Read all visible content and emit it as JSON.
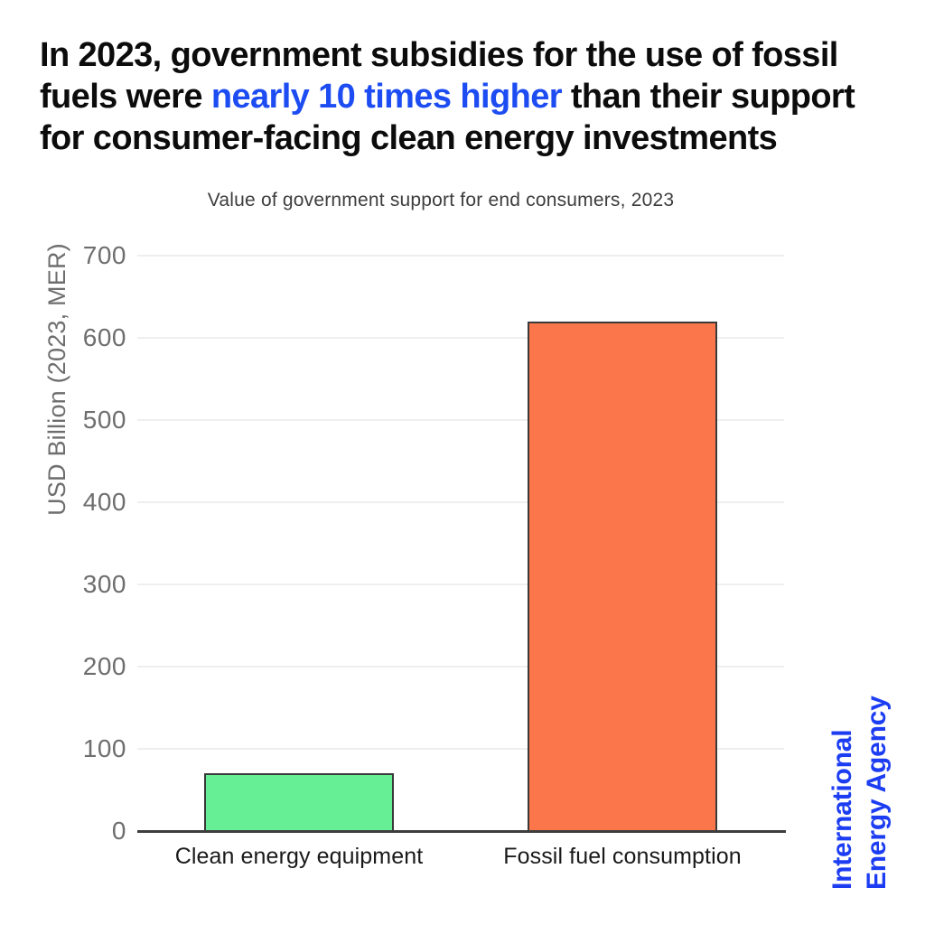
{
  "title": {
    "segments": [
      {
        "text": "In 2023, government subsidies for the use of fossil",
        "highlight": false,
        "br_after": true
      },
      {
        "text": "fuels were ",
        "highlight": false,
        "br_after": false
      },
      {
        "text": "nearly 10 times higher",
        "highlight": true,
        "br_after": false
      },
      {
        "text": " than their support",
        "highlight": false,
        "br_after": true
      },
      {
        "text": "for consumer-facing clean energy investments",
        "highlight": false,
        "br_after": false
      }
    ],
    "text_color": "#0c0c0c",
    "highlight_color": "#1c4cf2"
  },
  "chart_data": {
    "type": "bar",
    "title": "Value of government support for end consumers, 2023",
    "categories": [
      "Clean energy equipment",
      "Fossil fuel consumption"
    ],
    "values": [
      70,
      620
    ],
    "bar_colors": [
      "#67ef96",
      "#fb764a"
    ],
    "bar_border_color": "#3a3a3a",
    "xlabel": "",
    "ylabel": "USD Billion (2023, MER)",
    "ylim": [
      0,
      700
    ],
    "yticks": [
      0,
      100,
      200,
      300,
      400,
      500,
      600,
      700
    ],
    "grid": true,
    "gridline_color": "#efefef",
    "axis_color": "#3d3d3d",
    "tick_label_color": "#6e6e6e",
    "legend": false,
    "units": "USD Billion"
  },
  "branding": {
    "line1": "International",
    "line2": "Energy Agency",
    "color": "#1c3df2"
  }
}
